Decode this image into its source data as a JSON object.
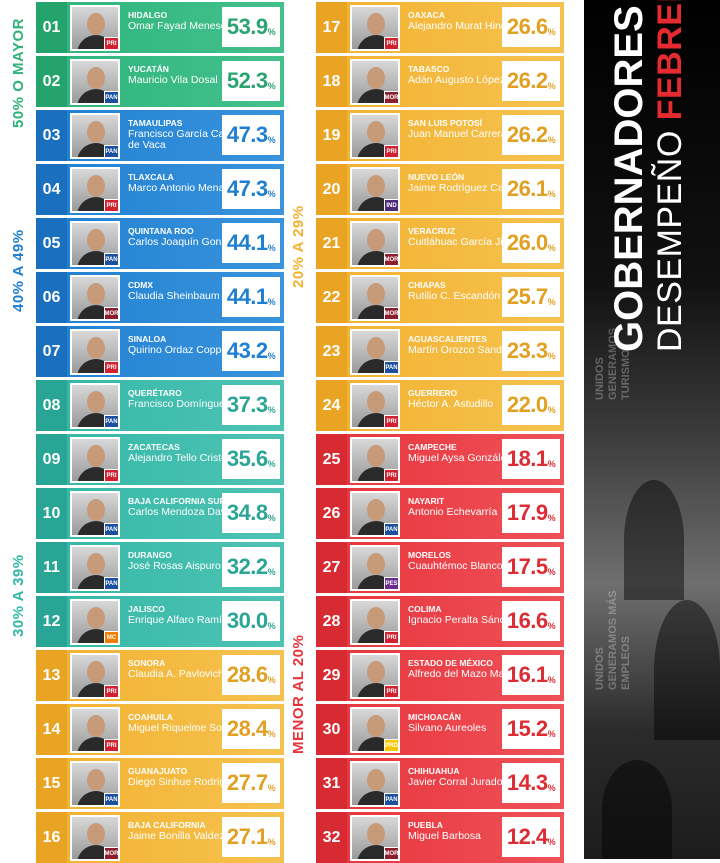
{
  "title": {
    "line1": "GOBERNADORES",
    "line2_a": "DESEMPEÑO ",
    "line2_b": "FEBRERO"
  },
  "ranges": [
    {
      "label": "50% O MAYOR",
      "color": "#2fb27a"
    },
    {
      "label": "40% A 49%",
      "color": "#1f7fd0"
    },
    {
      "label": "30% A 39%",
      "color": "#33b7a6"
    },
    {
      "label": "20% A 29%",
      "color": "#f2b12f"
    },
    {
      "label": "MENOR AL 20%",
      "color": "#e8333b"
    }
  ],
  "poster": {
    "ghost_text_1": "UNIDOS\nGENERAMOS\nTURISMO",
    "ghost_text_2": "UNIDOS\nGENERAMOS MÁS\nEMPLEOS"
  },
  "governors": [
    {
      "rank": "01",
      "state": "HIDALGO",
      "name": "Omar Fayad Meneses",
      "score": "53.9",
      "pct": "%",
      "party": "PRI",
      "band": 0
    },
    {
      "rank": "02",
      "state": "YUCATÁN",
      "name": "Mauricio Vila Dosal",
      "score": "52.3",
      "pct": "%",
      "party": "PAN",
      "band": 0
    },
    {
      "rank": "03",
      "state": "TAMAULIPAS",
      "name": "Francisco García Cabeza de Vaca",
      "score": "47.3",
      "pct": "%",
      "party": "PAN",
      "band": 1
    },
    {
      "rank": "04",
      "state": "TLAXCALA",
      "name": "Marco Antonio Mena",
      "score": "47.3",
      "pct": "%",
      "party": "PRI",
      "band": 1
    },
    {
      "rank": "05",
      "state": "QUINTANA ROO",
      "name": "Carlos Joaquín González",
      "score": "44.1",
      "pct": "%",
      "party": "PAN",
      "band": 1
    },
    {
      "rank": "06",
      "state": "CDMX",
      "name": "Claudia Sheinbaum",
      "score": "44.1",
      "pct": "%",
      "party": "MOR",
      "band": 1
    },
    {
      "rank": "07",
      "state": "SINALOA",
      "name": "Quirino Ordaz Coppel",
      "score": "43.2",
      "pct": "%",
      "party": "PRI",
      "band": 1
    },
    {
      "rank": "08",
      "state": "QUERÉTARO",
      "name": "Francisco Domínguez",
      "score": "37.3",
      "pct": "%",
      "party": "PAN",
      "band": 2
    },
    {
      "rank": "09",
      "state": "ZACATECAS",
      "name": "Alejandro Tello Cristerna",
      "score": "35.6",
      "pct": "%",
      "party": "PRI",
      "band": 2
    },
    {
      "rank": "10",
      "state": "BAJA CALIFORNIA SUR",
      "name": "Carlos Mendoza Davis",
      "score": "34.8",
      "pct": "%",
      "party": "PAN",
      "band": 2
    },
    {
      "rank": "11",
      "state": "DURANGO",
      "name": "José Rosas Aispuro",
      "score": "32.2",
      "pct": "%",
      "party": "PAN",
      "band": 2
    },
    {
      "rank": "12",
      "state": "JALISCO",
      "name": "Enrique Alfaro Ramírez",
      "score": "30.0",
      "pct": "%",
      "party": "MC",
      "band": 2
    },
    {
      "rank": "13",
      "state": "SONORA",
      "name": "Claudia A. Pavlovich",
      "score": "28.6",
      "pct": "%",
      "party": "PRI",
      "band": 3
    },
    {
      "rank": "14",
      "state": "COAHUILA",
      "name": "Miguel Riquelme Solís",
      "score": "28.4",
      "pct": "%",
      "party": "PRI",
      "band": 3
    },
    {
      "rank": "15",
      "state": "GUANAJUATO",
      "name": "Diego Sinhue Rodríguez",
      "score": "27.7",
      "pct": "%",
      "party": "PAN",
      "band": 3
    },
    {
      "rank": "16",
      "state": "BAJA CALIFORNIA",
      "name": "Jaime Bonilla Valdez",
      "score": "27.1",
      "pct": "%",
      "party": "MOR",
      "band": 3
    },
    {
      "rank": "17",
      "state": "OAXACA",
      "name": "Alejandro Murat Hinojosa",
      "score": "26.6",
      "pct": "%",
      "party": "PRI",
      "band": 3
    },
    {
      "rank": "18",
      "state": "TABASCO",
      "name": "Adán Augusto López",
      "score": "26.2",
      "pct": "%",
      "party": "MOR",
      "band": 3
    },
    {
      "rank": "19",
      "state": "SAN LUIS POTOSÍ",
      "name": "Juan Manuel Carreras",
      "score": "26.2",
      "pct": "%",
      "party": "PRI",
      "band": 3
    },
    {
      "rank": "20",
      "state": "NUEVO LEÓN",
      "name": "Jaime Rodríguez Calderón",
      "score": "26.1",
      "pct": "%",
      "party": "IND",
      "band": 3
    },
    {
      "rank": "21",
      "state": "VERACRUZ",
      "name": "Cuitláhuac García Jiménez",
      "score": "26.0",
      "pct": "%",
      "party": "MOR",
      "band": 3
    },
    {
      "rank": "22",
      "state": "CHIAPAS",
      "name": "Rutilio C. Escandón",
      "score": "25.7",
      "pct": "%",
      "party": "MOR",
      "band": 3
    },
    {
      "rank": "23",
      "state": "AGUASCALIENTES",
      "name": "Martín Orozco Sandoval",
      "score": "23.3",
      "pct": "%",
      "party": "PAN",
      "band": 3
    },
    {
      "rank": "24",
      "state": "GUERRERO",
      "name": "Héctor A. Astudillo",
      "score": "22.0",
      "pct": "%",
      "party": "PRI",
      "band": 3
    },
    {
      "rank": "25",
      "state": "CAMPECHE",
      "name": "Miguel Aysa González",
      "score": "18.1",
      "pct": "%",
      "party": "PRI",
      "band": 4
    },
    {
      "rank": "26",
      "state": "NAYARIT",
      "name": "Antonio Echevarría",
      "score": "17.9",
      "pct": "%",
      "party": "PAN",
      "band": 4
    },
    {
      "rank": "27",
      "state": "MORELOS",
      "name": "Cuauhtémoc Blanco",
      "score": "17.5",
      "pct": "%",
      "party": "PES",
      "band": 4
    },
    {
      "rank": "28",
      "state": "COLIMA",
      "name": "Ignacio Peralta Sánchez",
      "score": "16.6",
      "pct": "%",
      "party": "PRI",
      "band": 4
    },
    {
      "rank": "29",
      "state": "ESTADO DE MÉXICO",
      "name": "Alfredo del Mazo Maza",
      "score": "16.1",
      "pct": "%",
      "party": "PRI",
      "band": 4
    },
    {
      "rank": "30",
      "state": "MICHOACÁN",
      "name": "Silvano Aureoles",
      "score": "15.2",
      "pct": "%",
      "party": "PRD",
      "band": 4
    },
    {
      "rank": "31",
      "state": "CHIHUAHUA",
      "name": "Javier Corral Jurado",
      "score": "14.3",
      "pct": "%",
      "party": "PAN",
      "band": 4
    },
    {
      "rank": "32",
      "state": "PUEBLA",
      "name": "Miguel Barbosa",
      "score": "12.4",
      "pct": "%",
      "party": "MOR",
      "band": 4
    }
  ],
  "party_colors": {
    "PRI": "#d1202f",
    "PAN": "#1b4fa0",
    "MOR": "#8b1d2c",
    "MC": "#ef7d00",
    "IND": "#4b2a7a",
    "PES": "#6a2c91",
    "PRD": "#f6c600"
  },
  "band_styles": [
    {
      "rank_bg": "#25a36c",
      "row_a": "#2db47c",
      "row_b": "#44c08c",
      "score_color": "#2aa470"
    },
    {
      "rank_bg": "#1a6fbf",
      "row_a": "#1f80d1",
      "row_b": "#3a93dc",
      "score_color": "#1f7fd0"
    },
    {
      "rank_bg": "#28a594",
      "row_a": "#33b7a6",
      "row_b": "#4ec3b4",
      "score_color": "#2ba596"
    },
    {
      "rank_bg": "#e9a423",
      "row_a": "#f2b12f",
      "row_b": "#f6c24f",
      "score_color": "#e2a023"
    },
    {
      "rank_bg": "#d72a32",
      "row_a": "#e8333b",
      "row_b": "#ee5158",
      "score_color": "#dd2c34"
    }
  ]
}
